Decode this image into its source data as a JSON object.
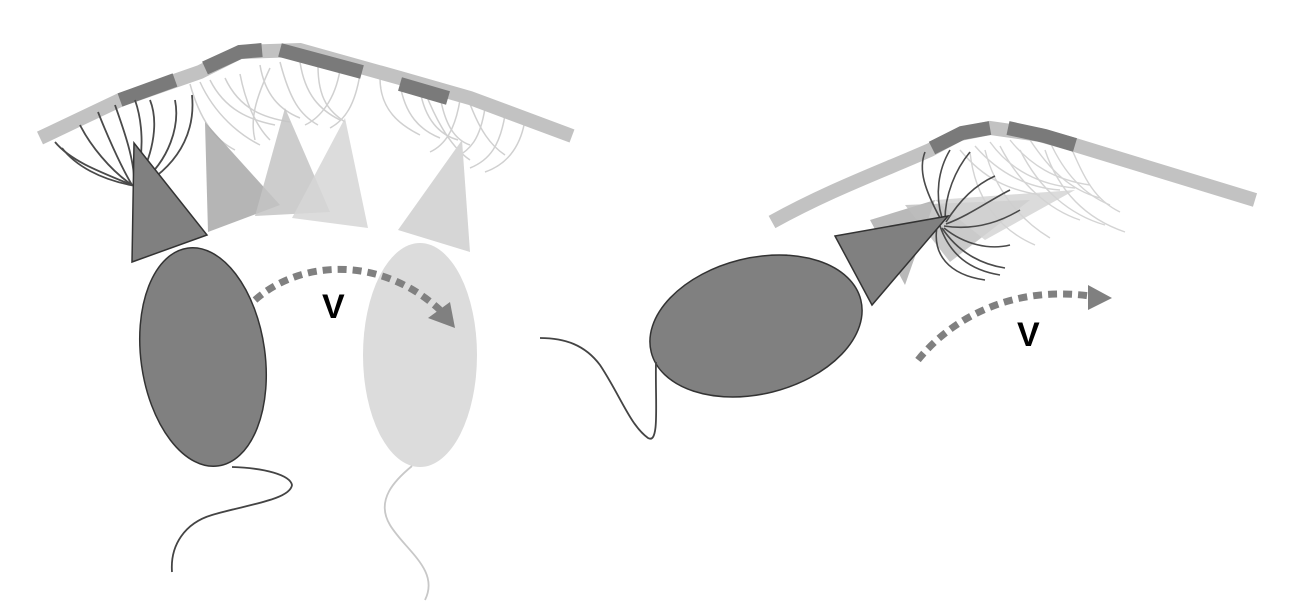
{
  "panels": {
    "left": {
      "velocity_label": "V"
    },
    "right": {
      "velocity_label": "V"
    }
  },
  "colors": {
    "cell_body": "#808080",
    "cell_outline": "#333333",
    "ghost_light": "#dcdcdc",
    "ghost_mid": "#c8c8c8",
    "ghost_dark": "#a8a8a8",
    "membrane_light": "#c2c2c2",
    "membrane_dark": "#7a7a7a",
    "filament_dark": "#4a4a4a",
    "filament_light": "#cfcfcf",
    "arrow": "#808080",
    "tail_dark": "#444444",
    "tail_light": "#c8c8c8"
  }
}
